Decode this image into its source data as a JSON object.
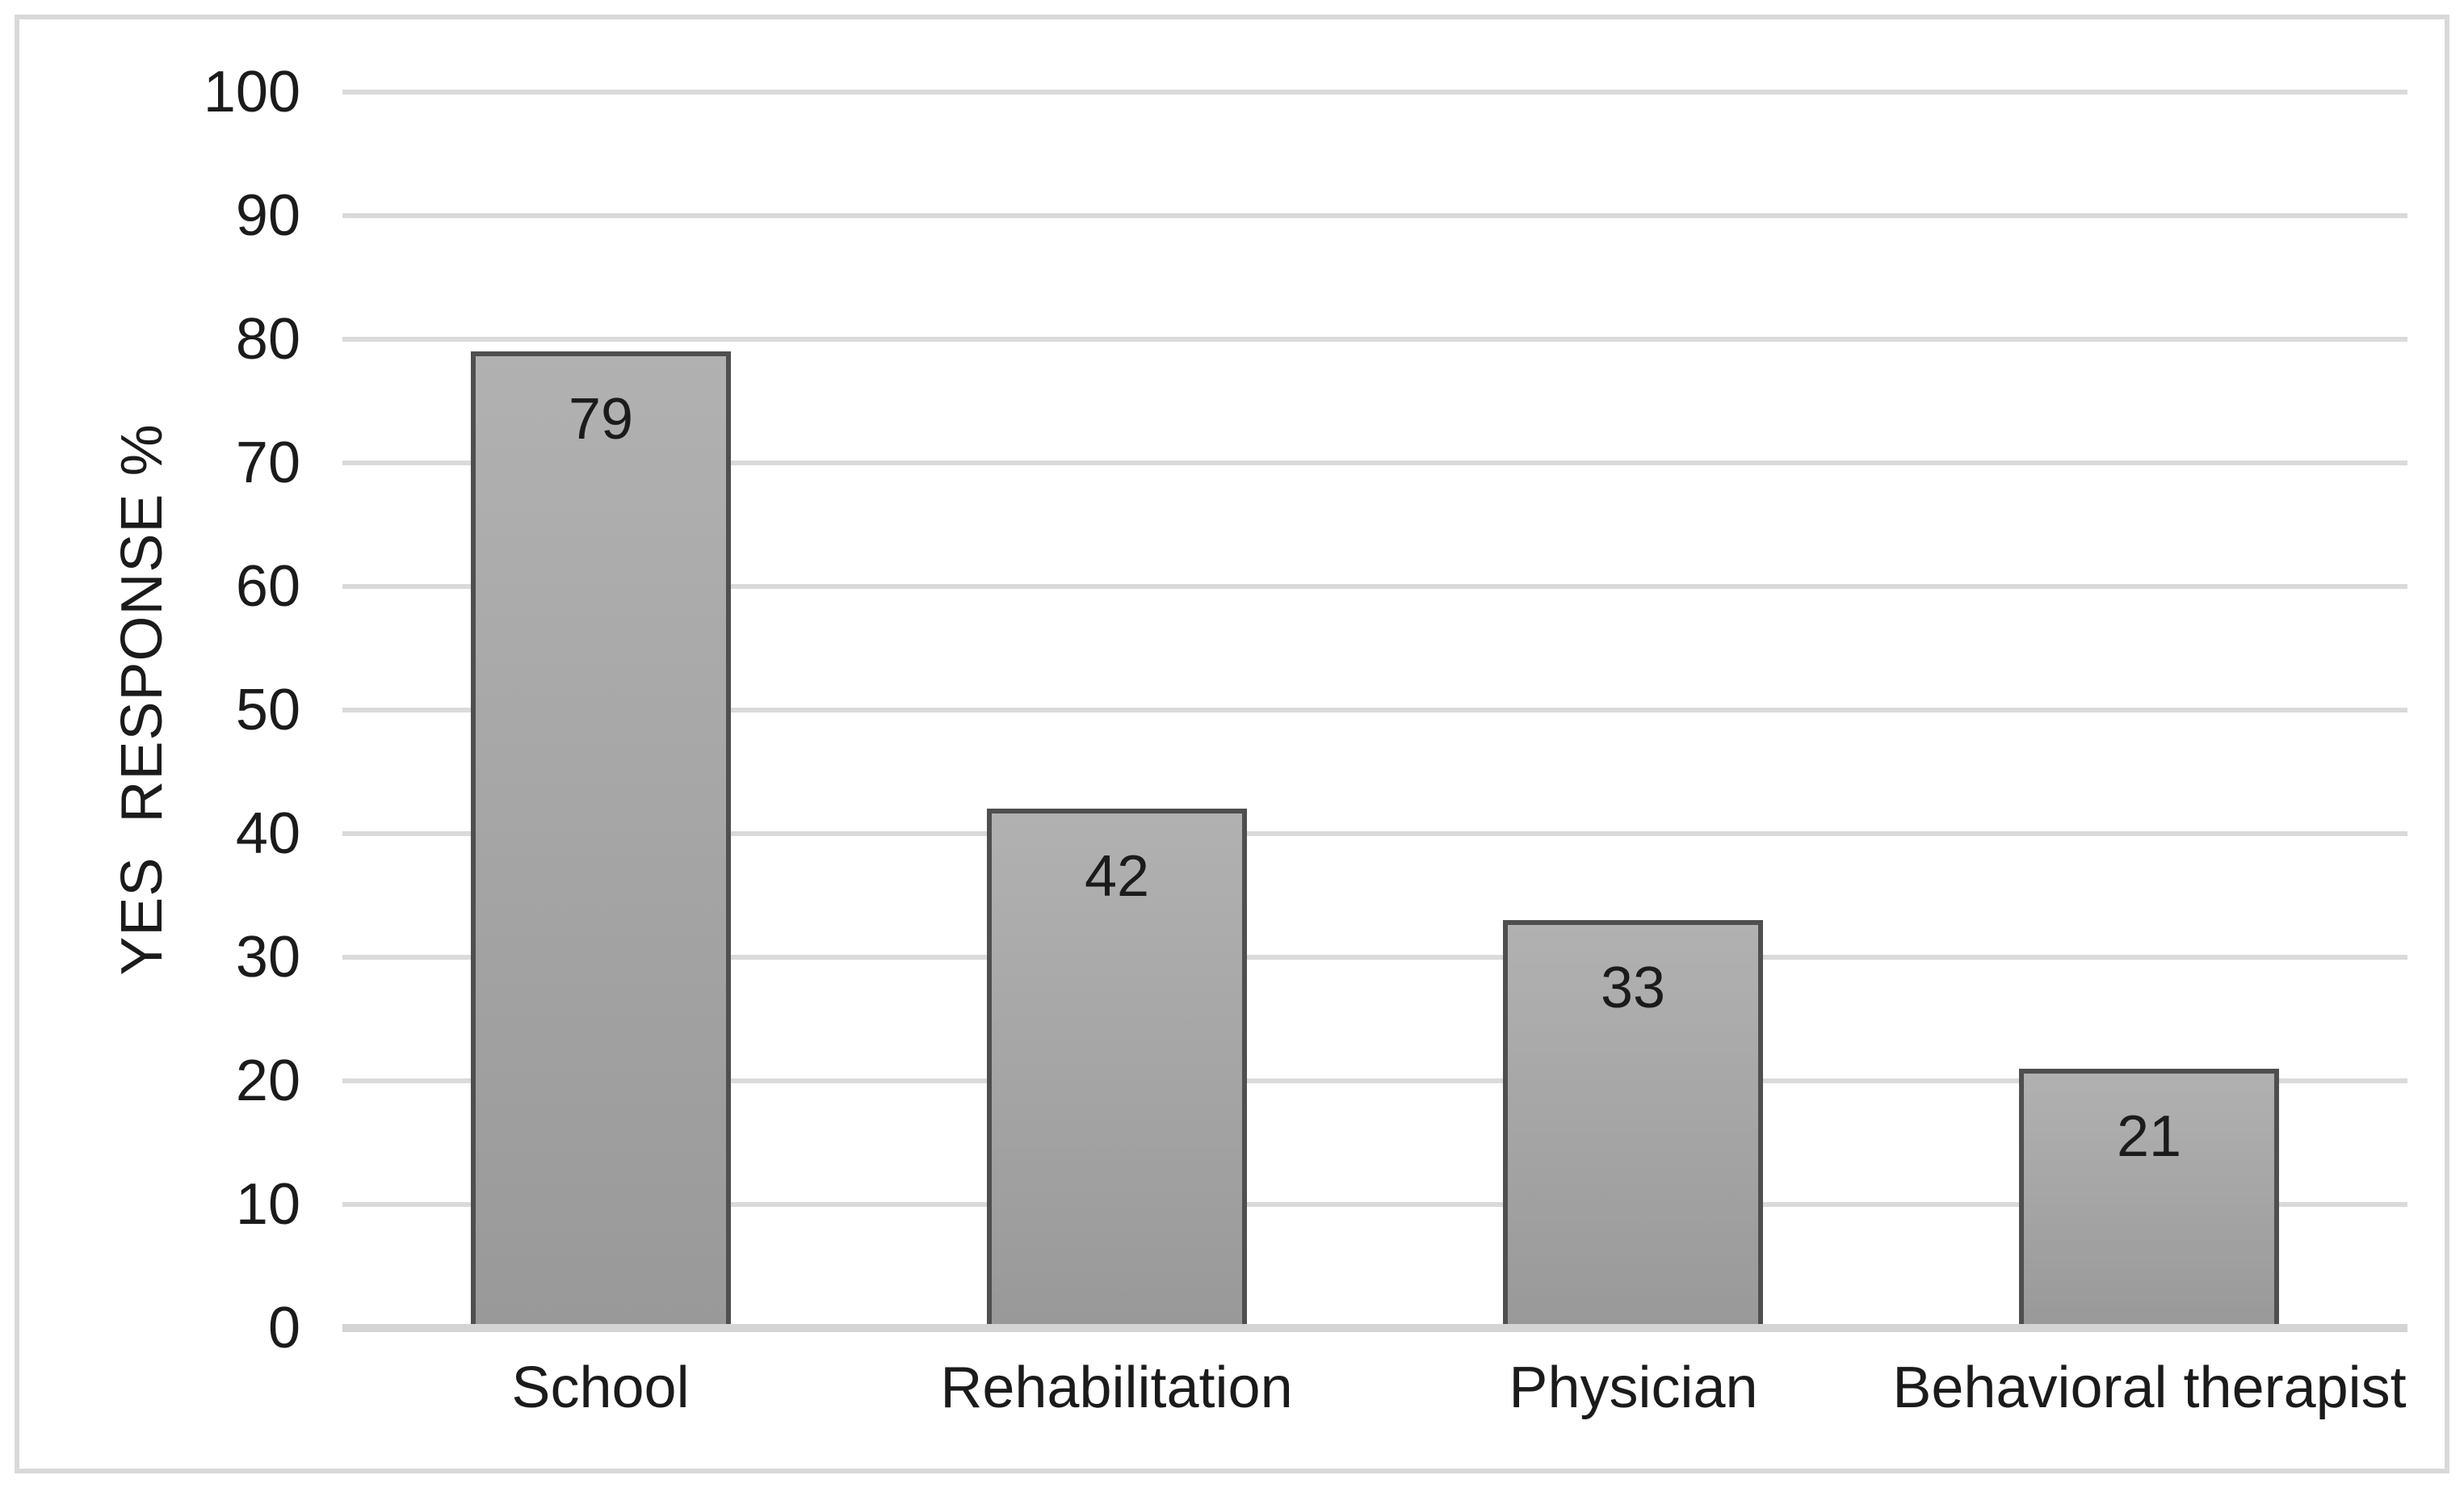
{
  "chart_data": {
    "type": "bar",
    "categories": [
      "School",
      "Rehabilitation",
      "Physician",
      "Behavioral therapist"
    ],
    "values": [
      79,
      42,
      33,
      21
    ],
    "data_labels": [
      "79",
      "42",
      "33",
      "21"
    ],
    "title": "",
    "xlabel": "",
    "ylabel": "YES  RESPONSE %",
    "ylim": [
      0,
      100
    ],
    "yticks": [
      0,
      10,
      20,
      30,
      40,
      50,
      60,
      70,
      80,
      90,
      100
    ],
    "grid": true,
    "gridlines": "horizontal",
    "legend": "none",
    "bar_color": "gray",
    "data_label_position": "inside-top"
  },
  "colors": {
    "text": "#1b1b1b",
    "gridline": "#dadada",
    "baseline": "#d4d4d4",
    "frame_border": "#d9d9d9",
    "bar_fill_top": "#b1b1b1",
    "bar_fill_bottom": "#999999",
    "bar_border": "#4f4f4f",
    "background": "#ffffff"
  }
}
